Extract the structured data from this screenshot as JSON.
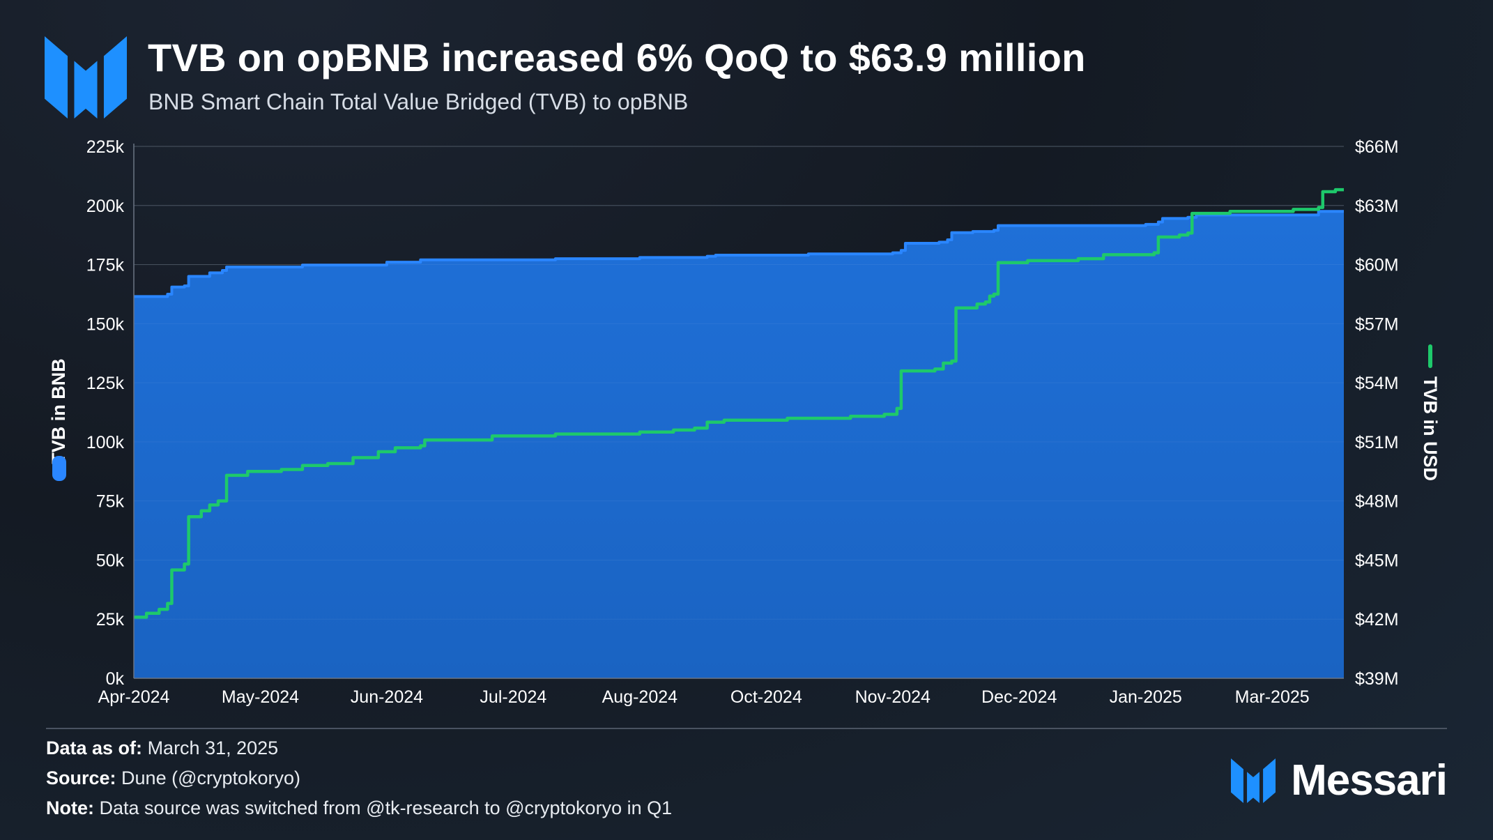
{
  "header": {
    "title": "TVB on opBNB increased 6% QoQ to $63.9 million",
    "subtitle": "BNB Smart Chain Total Value Bridged (TVB) to opBNB"
  },
  "footer": {
    "data_as_of_label": "Data as of:",
    "data_as_of_value": "March 31, 2025",
    "source_label": "Source:",
    "source_value": "Dune (@cryptokoryo)",
    "note_label": "Note:",
    "note_value": "Data source was switched from @tk-research to @cryptokoryo in Q1"
  },
  "brand": {
    "name": "Messari",
    "logo_icon": "messari-logo-icon"
  },
  "colors": {
    "bnb_area": "#1c6fd6",
    "bnb_line": "#2a86ff",
    "usd_line": "#1ec96b",
    "brand_blue": "#1e90ff",
    "grid": "#3a4452",
    "text": "#ffffff"
  },
  "chart_data": {
    "type": "area",
    "title": "TVB on opBNB increased 6% QoQ to $63.9 million",
    "subtitle": "BNB Smart Chain Total Value Bridged (TVB) to opBNB",
    "x_tick_labels": [
      "Apr-2024",
      "May-2024",
      "Jun-2024",
      "Jul-2024",
      "Aug-2024",
      "Oct-2024",
      "Nov-2024",
      "Dec-2024",
      "Jan-2025",
      "Mar-2025"
    ],
    "x_tick_positions": [
      0,
      30,
      60,
      90,
      120,
      150,
      180,
      210,
      240,
      270
    ],
    "x_range": [
      0,
      287
    ],
    "left_axis": {
      "label": "TVB in BNB",
      "ylim": [
        0,
        225000
      ],
      "tick_values": [
        0,
        25000,
        50000,
        75000,
        100000,
        125000,
        150000,
        175000,
        200000,
        225000
      ],
      "tick_labels": [
        "0k",
        "25k",
        "50k",
        "75k",
        "100k",
        "125k",
        "150k",
        "175k",
        "200k",
        "225k"
      ]
    },
    "right_axis": {
      "label": "TVB in USD",
      "ylim": [
        39,
        66
      ],
      "tick_values": [
        39,
        42,
        45,
        48,
        51,
        54,
        57,
        60,
        63,
        66
      ],
      "tick_labels": [
        "$39M",
        "$42M",
        "$45M",
        "$48M",
        "$51M",
        "$54M",
        "$57M",
        "$60M",
        "$63M",
        "$66M"
      ]
    },
    "grid": true,
    "series": [
      {
        "name": "TVB in BNB",
        "type": "area",
        "axis": "left",
        "points": [
          [
            0,
            161500
          ],
          [
            8,
            162500
          ],
          [
            9,
            165500
          ],
          [
            12,
            166000
          ],
          [
            13,
            170000
          ],
          [
            18,
            171500
          ],
          [
            21,
            172500
          ],
          [
            22,
            174000
          ],
          [
            40,
            174800
          ],
          [
            60,
            176000
          ],
          [
            68,
            177000
          ],
          [
            100,
            177500
          ],
          [
            120,
            178000
          ],
          [
            136,
            178500
          ],
          [
            138,
            179000
          ],
          [
            160,
            179500
          ],
          [
            180,
            180000
          ],
          [
            182,
            181000
          ],
          [
            183,
            184000
          ],
          [
            191,
            184500
          ],
          [
            193,
            185500
          ],
          [
            194,
            188500
          ],
          [
            199,
            189000
          ],
          [
            204,
            189500
          ],
          [
            205,
            191500
          ],
          [
            240,
            192000
          ],
          [
            243,
            193000
          ],
          [
            244,
            194500
          ],
          [
            250,
            195000
          ],
          [
            252,
            196000
          ],
          [
            280,
            196000
          ],
          [
            281,
            197500
          ],
          [
            287,
            197500
          ]
        ]
      },
      {
        "name": "TVB in USD",
        "type": "line",
        "axis": "right",
        "points": [
          [
            0,
            42.1
          ],
          [
            3,
            42.3
          ],
          [
            6,
            42.5
          ],
          [
            8,
            42.8
          ],
          [
            9,
            44.5
          ],
          [
            12,
            44.8
          ],
          [
            13,
            47.2
          ],
          [
            16,
            47.5
          ],
          [
            18,
            47.8
          ],
          [
            20,
            48.0
          ],
          [
            22,
            49.3
          ],
          [
            27,
            49.5
          ],
          [
            35,
            49.6
          ],
          [
            40,
            49.8
          ],
          [
            46,
            49.9
          ],
          [
            52,
            50.2
          ],
          [
            58,
            50.5
          ],
          [
            62,
            50.7
          ],
          [
            68,
            50.8
          ],
          [
            69,
            51.1
          ],
          [
            85,
            51.3
          ],
          [
            100,
            51.4
          ],
          [
            120,
            51.5
          ],
          [
            128,
            51.6
          ],
          [
            133,
            51.7
          ],
          [
            136,
            52.0
          ],
          [
            140,
            52.1
          ],
          [
            155,
            52.2
          ],
          [
            170,
            52.3
          ],
          [
            178,
            52.4
          ],
          [
            181,
            52.7
          ],
          [
            182,
            54.6
          ],
          [
            190,
            54.7
          ],
          [
            192,
            55.0
          ],
          [
            194,
            55.1
          ],
          [
            195,
            57.8
          ],
          [
            200,
            58.0
          ],
          [
            202,
            58.1
          ],
          [
            203,
            58.4
          ],
          [
            204,
            58.5
          ],
          [
            205,
            60.1
          ],
          [
            212,
            60.2
          ],
          [
            224,
            60.3
          ],
          [
            230,
            60.5
          ],
          [
            242,
            60.6
          ],
          [
            243,
            61.4
          ],
          [
            248,
            61.5
          ],
          [
            250,
            61.6
          ],
          [
            251,
            62.6
          ],
          [
            260,
            62.7
          ],
          [
            275,
            62.8
          ],
          [
            281,
            62.9
          ],
          [
            282,
            63.7
          ],
          [
            285,
            63.8
          ],
          [
            287,
            63.8
          ]
        ]
      }
    ]
  }
}
